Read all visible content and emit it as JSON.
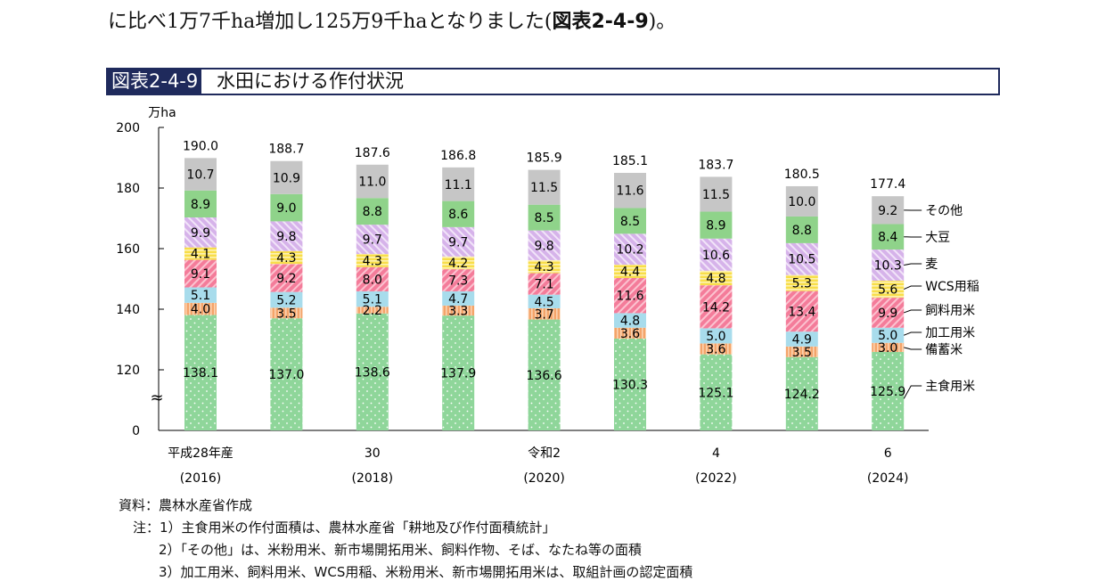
{
  "intro": {
    "text": "に比べ1万7千ha増加し125万9千haとなりました(",
    "ref": "図表2-4-9",
    "end": ")。"
  },
  "title": {
    "tag": "図表2-4-9",
    "text": "水田における作付状況"
  },
  "chart_data": {
    "type": "bar",
    "stacked": true,
    "ylabel": "万ha",
    "yticks": [
      "200",
      "180",
      "160",
      "140",
      "120",
      "0"
    ],
    "axis_break": true,
    "categories": [
      {
        "year": "平成28年産",
        "ad": "(2016)"
      },
      {
        "year": "",
        "ad": ""
      },
      {
        "year": "30",
        "ad": "(2018)"
      },
      {
        "year": "",
        "ad": ""
      },
      {
        "year": "令和2",
        "ad": "(2020)"
      },
      {
        "year": "",
        "ad": ""
      },
      {
        "year": "4",
        "ad": "(2022)"
      },
      {
        "year": "",
        "ad": ""
      },
      {
        "year": "6",
        "ad": "(2024)"
      }
    ],
    "totals": [
      190.0,
      188.7,
      187.6,
      186.8,
      185.9,
      185.1,
      183.7,
      180.5,
      177.4
    ],
    "series": [
      {
        "name": "主食用米",
        "color": "#8fd69a",
        "pattern": "dots",
        "values": [
          138.1,
          137.0,
          138.6,
          137.9,
          136.6,
          130.3,
          125.1,
          124.2,
          125.9
        ]
      },
      {
        "name": "備蓄米",
        "color": "#f4a46a",
        "pattern": "vstripe",
        "values": [
          4.0,
          3.5,
          2.2,
          3.3,
          3.7,
          3.6,
          3.6,
          3.5,
          3.0
        ]
      },
      {
        "name": "加工用米",
        "color": "#a8dcec",
        "pattern": "solid",
        "values": [
          5.1,
          5.2,
          5.1,
          4.7,
          4.5,
          4.8,
          5.0,
          4.9,
          5.0
        ]
      },
      {
        "name": "飼料用米",
        "color": "#f47c9a",
        "pattern": "diag",
        "values": [
          9.1,
          9.2,
          8.0,
          7.3,
          7.1,
          11.6,
          14.2,
          13.4,
          9.9
        ]
      },
      {
        "name": "WCS用稲",
        "color": "#f8de4a",
        "pattern": "hstripe",
        "values": [
          4.1,
          4.3,
          4.3,
          4.2,
          4.3,
          4.4,
          4.8,
          5.3,
          5.6
        ]
      },
      {
        "name": "麦",
        "color": "#d6b3ea",
        "pattern": "diag2",
        "values": [
          9.9,
          9.8,
          9.7,
          9.7,
          9.8,
          10.2,
          10.6,
          10.5,
          10.3
        ]
      },
      {
        "name": "大豆",
        "color": "#8fd38a",
        "pattern": "solid",
        "values": [
          8.9,
          9.0,
          8.8,
          8.6,
          8.5,
          8.5,
          8.9,
          8.8,
          8.4
        ]
      },
      {
        "name": "その他",
        "color": "#c6c6c6",
        "pattern": "solid",
        "values": [
          10.7,
          10.9,
          11.0,
          11.1,
          11.5,
          11.6,
          11.5,
          10.0,
          9.2
        ]
      }
    ],
    "legend_labels": [
      "その他",
      "大豆",
      "麦",
      "WCS用稲",
      "飼料用米",
      "加工用米",
      "備蓄米",
      "主食用米"
    ]
  },
  "notes": {
    "source": "資料：農林水産省作成",
    "n1": "注：1）主食用米の作付面積は、農林水産省「耕地及び作付面積統計」",
    "n2": "2）「その他」は、米粉用米、新市場開拓用米、飼料作物、そば、なたね等の面積",
    "n3": "3）加工用米、飼料用米、WCS用稲、米粉用米、新市場開拓用米は、取組計画の認定面積"
  }
}
